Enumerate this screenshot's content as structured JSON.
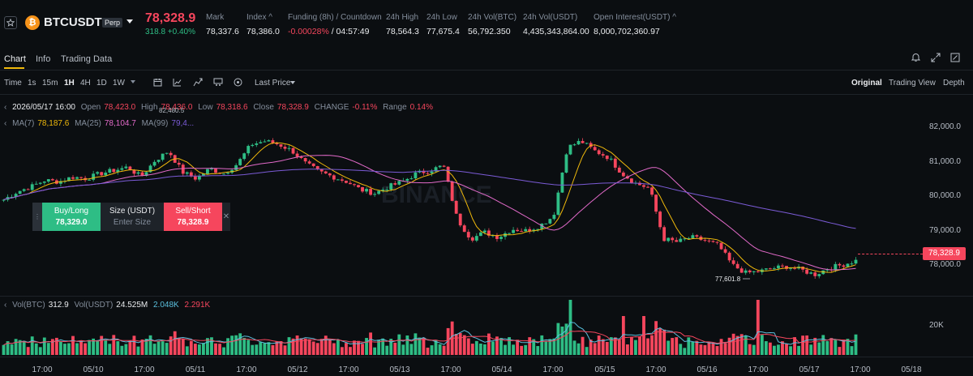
{
  "header": {
    "symbol": "BTCUSDT",
    "badge": "Perp",
    "last_price": "78,328.9",
    "change": "318.8 +0.40%",
    "stats": [
      {
        "label": "Mark",
        "value": "78,337.6"
      },
      {
        "label": "Index ^",
        "value": "78,386.0"
      },
      {
        "label": "Funding (8h) / Countdown",
        "value_red": "-0.00028%",
        "value_white": " / 04:57:49"
      },
      {
        "label": "24h High",
        "value": "78,564.3"
      },
      {
        "label": "24h Low",
        "value": "77,675.4"
      },
      {
        "label": "24h Vol(BTC)",
        "value": "56,792.350"
      },
      {
        "label": "24h Vol(USDT)",
        "value": "4,435,343,864.00"
      },
      {
        "label": "Open Interest(USDT) ^",
        "value": "8,000,702,360.97"
      }
    ]
  },
  "tabs": {
    "chart": "Chart",
    "info": "Info",
    "trading_data": "Trading Data"
  },
  "toolbar": {
    "time": "Time",
    "intervals": [
      "1s",
      "15m",
      "1H",
      "4H",
      "1D",
      "1W"
    ],
    "price_type": "Last Price",
    "views": [
      "Original",
      "Trading View",
      "Depth"
    ]
  },
  "ohlc_legend": {
    "date": "2026/05/17 16:00",
    "open_label": "Open",
    "open": "78,423.0",
    "high_label": "High",
    "high": "78,436.0",
    "low_label": "Low",
    "low": "78,318.6",
    "close_label": "Close",
    "close": "78,328.9",
    "change_label": "CHANGE",
    "change": "-0.11%",
    "range_label": "Range",
    "range": "0.14%"
  },
  "ma_legend": {
    "ma7_label": "MA(7)",
    "ma7": "78,187.6",
    "ma25_label": "MA(25)",
    "ma25": "78,104.7",
    "ma99_label": "MA(99)",
    "ma99": "79,4..."
  },
  "annotations": {
    "high_marker": "82,480.5",
    "low_marker": "77,601.8"
  },
  "order_panel": {
    "buy_label": "Buy/Long",
    "buy_price": "78,329.0",
    "size_label": "Size (USDT)",
    "size_placeholder": "Enter Size",
    "sell_label": "Sell/Short",
    "sell_price": "78,328.9"
  },
  "y_axis": [
    "82,000.0",
    "81,000.0",
    "80,000.0",
    "79,000.0",
    "78,000.0"
  ],
  "current_price_tag": "78,328.9",
  "volume_legend": {
    "vol_btc_label": "Vol(BTC)",
    "vol_btc": "312.9",
    "vol_usdt_label": "Vol(USDT)",
    "vol_usdt": "24.525M",
    "ma1": "2.048K",
    "ma2": "2.291K"
  },
  "vol_axis": "20K",
  "x_axis": [
    "17:00",
    "05/10",
    "17:00",
    "05/11",
    "17:00",
    "05/12",
    "17:00",
    "05/13",
    "17:00",
    "05/14",
    "17:00",
    "05/15",
    "17:00",
    "05/16",
    "17:00",
    "05/17",
    "17:00",
    "05/18"
  ],
  "watermark": "BINANCE",
  "colors": {
    "up": "#2ebd85",
    "down": "#f6465d",
    "ma7": "#f0b90b",
    "ma25": "#e26ac9",
    "ma99": "#7b5bd6",
    "accent": "#f0b90b"
  },
  "chart_data": {
    "type": "candlestick",
    "interval": "1H",
    "ylim": [
      77500,
      82600
    ],
    "close_path": [
      80200,
      80450,
      80600,
      80800,
      80750,
      80900,
      80850,
      81000,
      81100,
      81200,
      80900,
      81400,
      81700,
      81050,
      80850,
      81150,
      81000,
      81300,
      81900,
      82000,
      81900,
      81700,
      81300,
      81050,
      80900,
      80750,
      80500,
      80400,
      80600,
      80750,
      81000,
      81100,
      81250,
      79600,
      79000,
      79200,
      79050,
      79300,
      79250,
      79400,
      79700,
      81800,
      82000,
      81700,
      81500,
      81000,
      80700,
      80550,
      79000,
      78900,
      79050,
      78950,
      78800,
      78200,
      77950,
      78000,
      78100,
      78150,
      78050,
      77900,
      78100,
      78200,
      78330
    ]
  }
}
